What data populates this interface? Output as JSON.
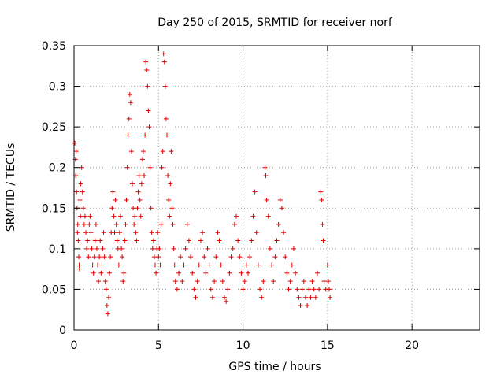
{
  "chart_data": {
    "type": "scatter",
    "title": "Day 250 of 2015, SRMTID for receiver norf",
    "xlabel": "GPS time / hours",
    "ylabel": "SRMTID / TECUs",
    "xlim": [
      0,
      24
    ],
    "ylim": [
      0,
      0.35
    ],
    "x_ticks": [
      0,
      5,
      10,
      15,
      20
    ],
    "x_tick_labels": [
      "0",
      "5",
      "10",
      "15",
      "20"
    ],
    "y_ticks": [
      0,
      0.05,
      0.1,
      0.15,
      0.2,
      0.25,
      0.3,
      0.35
    ],
    "y_tick_labels": [
      "0",
      "0.05",
      "0.1",
      "0.15",
      "0.2",
      "0.25",
      "0.3",
      "0.35"
    ],
    "grid": true,
    "marker": "plus",
    "color": "#e00000",
    "series": [
      {
        "name": "SRMTID",
        "points": [
          [
            0.05,
            0.23
          ],
          [
            0.08,
            0.21
          ],
          [
            0.1,
            0.19
          ],
          [
            0.12,
            0.22
          ],
          [
            0.15,
            0.17
          ],
          [
            0.18,
            0.15
          ],
          [
            0.2,
            0.12
          ],
          [
            0.22,
            0.13
          ],
          [
            0.25,
            0.11
          ],
          [
            0.28,
            0.09
          ],
          [
            0.3,
            0.08
          ],
          [
            0.32,
            0.075
          ],
          [
            0.35,
            0.16
          ],
          [
            0.38,
            0.14
          ],
          [
            0.4,
            0.18
          ],
          [
            0.45,
            0.2
          ],
          [
            0.5,
            0.17
          ],
          [
            0.55,
            0.15
          ],
          [
            0.6,
            0.13
          ],
          [
            0.65,
            0.14
          ],
          [
            0.7,
            0.12
          ],
          [
            0.75,
            0.1
          ],
          [
            0.8,
            0.11
          ],
          [
            0.85,
            0.09
          ],
          [
            0.9,
            0.13
          ],
          [
            0.95,
            0.14
          ],
          [
            1.0,
            0.12
          ],
          [
            1.05,
            0.1
          ],
          [
            1.1,
            0.08
          ],
          [
            1.15,
            0.07
          ],
          [
            1.2,
            0.09
          ],
          [
            1.25,
            0.11
          ],
          [
            1.3,
            0.13
          ],
          [
            1.35,
            0.1
          ],
          [
            1.4,
            0.08
          ],
          [
            1.45,
            0.06
          ],
          [
            1.5,
            0.09
          ],
          [
            1.55,
            0.11
          ],
          [
            1.6,
            0.07
          ],
          [
            1.65,
            0.08
          ],
          [
            1.7,
            0.1
          ],
          [
            1.75,
            0.12
          ],
          [
            1.8,
            0.09
          ],
          [
            1.85,
            0.06
          ],
          [
            1.9,
            0.05
          ],
          [
            1.95,
            0.03
          ],
          [
            2.0,
            0.02
          ],
          [
            2.05,
            0.04
          ],
          [
            2.1,
            0.07
          ],
          [
            2.15,
            0.09
          ],
          [
            2.2,
            0.12
          ],
          [
            2.25,
            0.15
          ],
          [
            2.3,
            0.17
          ],
          [
            2.35,
            0.14
          ],
          [
            2.4,
            0.12
          ],
          [
            2.45,
            0.16
          ],
          [
            2.5,
            0.13
          ],
          [
            2.55,
            0.11
          ],
          [
            2.6,
            0.1
          ],
          [
            2.65,
            0.08
          ],
          [
            2.7,
            0.12
          ],
          [
            2.75,
            0.14
          ],
          [
            2.8,
            0.1
          ],
          [
            2.85,
            0.09
          ],
          [
            2.9,
            0.06
          ],
          [
            2.95,
            0.07
          ],
          [
            3.0,
            0.11
          ],
          [
            3.05,
            0.13
          ],
          [
            3.1,
            0.16
          ],
          [
            3.15,
            0.2
          ],
          [
            3.2,
            0.24
          ],
          [
            3.25,
            0.26
          ],
          [
            3.3,
            0.29
          ],
          [
            3.35,
            0.28
          ],
          [
            3.4,
            0.22
          ],
          [
            3.45,
            0.18
          ],
          [
            3.5,
            0.15
          ],
          [
            3.55,
            0.13
          ],
          [
            3.6,
            0.14
          ],
          [
            3.65,
            0.12
          ],
          [
            3.7,
            0.11
          ],
          [
            3.75,
            0.15
          ],
          [
            3.8,
            0.17
          ],
          [
            3.85,
            0.19
          ],
          [
            3.9,
            0.16
          ],
          [
            3.95,
            0.14
          ],
          [
            4.0,
            0.18
          ],
          [
            4.05,
            0.21
          ],
          [
            4.1,
            0.22
          ],
          [
            4.15,
            0.19
          ],
          [
            4.2,
            0.24
          ],
          [
            4.25,
            0.33
          ],
          [
            4.3,
            0.32
          ],
          [
            4.35,
            0.3
          ],
          [
            4.4,
            0.27
          ],
          [
            4.45,
            0.25
          ],
          [
            4.5,
            0.2
          ],
          [
            4.55,
            0.15
          ],
          [
            4.6,
            0.12
          ],
          [
            4.65,
            0.1
          ],
          [
            4.7,
            0.11
          ],
          [
            4.75,
            0.09
          ],
          [
            4.8,
            0.08
          ],
          [
            4.85,
            0.07
          ],
          [
            4.9,
            0.1
          ],
          [
            4.95,
            0.12
          ],
          [
            5.0,
            0.09
          ],
          [
            5.05,
            0.1
          ],
          [
            5.1,
            0.08
          ],
          [
            5.15,
            0.13
          ],
          [
            5.2,
            0.2
          ],
          [
            5.25,
            0.22
          ],
          [
            5.3,
            0.34
          ],
          [
            5.35,
            0.33
          ],
          [
            5.4,
            0.3
          ],
          [
            5.45,
            0.26
          ],
          [
            5.5,
            0.24
          ],
          [
            5.55,
            0.19
          ],
          [
            5.6,
            0.16
          ],
          [
            5.65,
            0.14
          ],
          [
            5.7,
            0.18
          ],
          [
            5.75,
            0.22
          ],
          [
            5.8,
            0.15
          ],
          [
            5.85,
            0.13
          ],
          [
            5.9,
            0.1
          ],
          [
            5.95,
            0.08
          ],
          [
            6.0,
            0.06
          ],
          [
            6.1,
            0.05
          ],
          [
            6.2,
            0.07
          ],
          [
            6.3,
            0.09
          ],
          [
            6.4,
            0.06
          ],
          [
            6.5,
            0.08
          ],
          [
            6.6,
            0.1
          ],
          [
            6.7,
            0.13
          ],
          [
            6.8,
            0.11
          ],
          [
            6.9,
            0.09
          ],
          [
            7.0,
            0.07
          ],
          [
            7.1,
            0.05
          ],
          [
            7.2,
            0.04
          ],
          [
            7.3,
            0.06
          ],
          [
            7.4,
            0.08
          ],
          [
            7.5,
            0.11
          ],
          [
            7.6,
            0.12
          ],
          [
            7.7,
            0.09
          ],
          [
            7.8,
            0.07
          ],
          [
            7.9,
            0.1
          ],
          [
            8.0,
            0.08
          ],
          [
            8.1,
            0.05
          ],
          [
            8.2,
            0.04
          ],
          [
            8.3,
            0.06
          ],
          [
            8.4,
            0.09
          ],
          [
            8.5,
            0.12
          ],
          [
            8.6,
            0.11
          ],
          [
            8.7,
            0.08
          ],
          [
            8.8,
            0.06
          ],
          [
            8.9,
            0.04
          ],
          [
            9.0,
            0.035
          ],
          [
            9.1,
            0.05
          ],
          [
            9.2,
            0.07
          ],
          [
            9.3,
            0.09
          ],
          [
            9.4,
            0.1
          ],
          [
            9.5,
            0.13
          ],
          [
            9.6,
            0.14
          ],
          [
            9.7,
            0.11
          ],
          [
            9.8,
            0.09
          ],
          [
            9.9,
            0.07
          ],
          [
            10.0,
            0.05
          ],
          [
            10.1,
            0.06
          ],
          [
            10.2,
            0.08
          ],
          [
            10.3,
            0.07
          ],
          [
            10.4,
            0.09
          ],
          [
            10.5,
            0.11
          ],
          [
            10.6,
            0.14
          ],
          [
            10.7,
            0.17
          ],
          [
            10.8,
            0.12
          ],
          [
            10.9,
            0.08
          ],
          [
            11.0,
            0.05
          ],
          [
            11.1,
            0.04
          ],
          [
            11.2,
            0.06
          ],
          [
            11.3,
            0.2
          ],
          [
            11.35,
            0.19
          ],
          [
            11.4,
            0.16
          ],
          [
            11.5,
            0.14
          ],
          [
            11.6,
            0.1
          ],
          [
            11.7,
            0.08
          ],
          [
            11.8,
            0.06
          ],
          [
            11.9,
            0.09
          ],
          [
            12.0,
            0.11
          ],
          [
            12.1,
            0.13
          ],
          [
            12.2,
            0.16
          ],
          [
            12.3,
            0.15
          ],
          [
            12.4,
            0.12
          ],
          [
            12.5,
            0.09
          ],
          [
            12.6,
            0.07
          ],
          [
            12.7,
            0.05
          ],
          [
            12.8,
            0.06
          ],
          [
            12.9,
            0.08
          ],
          [
            13.0,
            0.1
          ],
          [
            13.1,
            0.07
          ],
          [
            13.2,
            0.05
          ],
          [
            13.3,
            0.04
          ],
          [
            13.4,
            0.03
          ],
          [
            13.5,
            0.05
          ],
          [
            13.6,
            0.06
          ],
          [
            13.7,
            0.04
          ],
          [
            13.8,
            0.03
          ],
          [
            13.9,
            0.05
          ],
          [
            14.0,
            0.04
          ],
          [
            14.1,
            0.06
          ],
          [
            14.2,
            0.05
          ],
          [
            14.3,
            0.04
          ],
          [
            14.4,
            0.07
          ],
          [
            14.5,
            0.05
          ],
          [
            14.6,
            0.17
          ],
          [
            14.65,
            0.16
          ],
          [
            14.7,
            0.13
          ],
          [
            14.75,
            0.11
          ],
          [
            14.8,
            0.06
          ],
          [
            14.9,
            0.05
          ],
          [
            15.0,
            0.08
          ],
          [
            15.05,
            0.06
          ],
          [
            15.1,
            0.05
          ],
          [
            15.15,
            0.04
          ]
        ]
      }
    ]
  }
}
